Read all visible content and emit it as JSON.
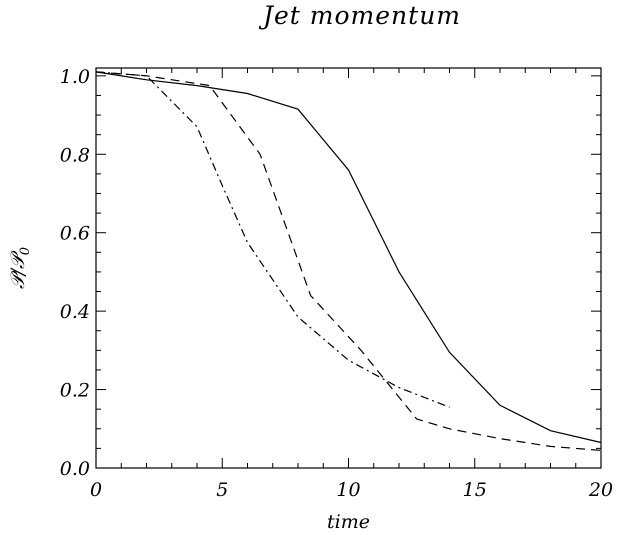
{
  "chart_data": {
    "type": "line",
    "title": "Jet momentum",
    "xlabel": "time",
    "ylabel": "𝒫/𝒫",
    "ylabel_sub": "0",
    "xlim": [
      0,
      20
    ],
    "ylim": [
      0,
      1.02
    ],
    "x_ticks": [
      "0",
      "5",
      "10",
      "15",
      "20"
    ],
    "y_ticks": [
      "0.0",
      "0.2",
      "0.4",
      "0.6",
      "0.8",
      "1.0"
    ],
    "grid": false,
    "series": [
      {
        "style": "solid",
        "x": [
          0,
          2,
          4,
          6,
          8,
          10,
          12,
          14,
          16,
          18,
          20
        ],
        "y": [
          1.01,
          0.99,
          0.975,
          0.955,
          0.915,
          0.76,
          0.5,
          0.295,
          0.16,
          0.095,
          0.065
        ]
      },
      {
        "style": "dashed",
        "x": [
          0,
          2,
          4.5,
          6.5,
          8.5,
          10.5,
          12.7,
          14,
          16,
          18,
          20
        ],
        "y": [
          1.01,
          1.0,
          0.975,
          0.8,
          0.44,
          0.3,
          0.125,
          0.1,
          0.075,
          0.055,
          0.045
        ]
      },
      {
        "style": "dashdot",
        "x": [
          0,
          2,
          4,
          5,
          6,
          8,
          10,
          12,
          14
        ],
        "y": [
          1.01,
          1.0,
          0.87,
          0.72,
          0.575,
          0.385,
          0.275,
          0.205,
          0.155
        ]
      }
    ]
  }
}
